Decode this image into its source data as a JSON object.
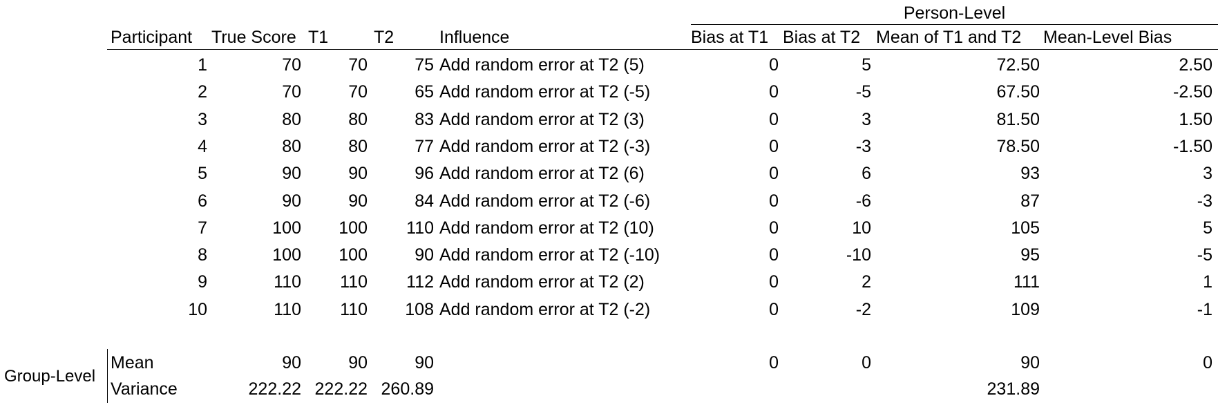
{
  "header": {
    "group_title": "Person-Level",
    "participant": "Participant",
    "true_score": "True Score",
    "t1": "T1",
    "t2": "T2",
    "influence": "Influence",
    "bias_t1": "Bias at T1",
    "bias_t2": "Bias at T2",
    "mean_t1_t2": "Mean of T1 and T2",
    "mean_level_bias": "Mean-Level Bias"
  },
  "rows": [
    {
      "participant": "1",
      "true_score": "70",
      "t1": "70",
      "t2": "75",
      "influence": "Add random error at T2 (5)",
      "bias_t1": "0",
      "bias_t2": "5",
      "mean": "72.50",
      "mean_bias": "2.50"
    },
    {
      "participant": "2",
      "true_score": "70",
      "t1": "70",
      "t2": "65",
      "influence": "Add random error at T2 (-5)",
      "bias_t1": "0",
      "bias_t2": "-5",
      "mean": "67.50",
      "mean_bias": "-2.50"
    },
    {
      "participant": "3",
      "true_score": "80",
      "t1": "80",
      "t2": "83",
      "influence": "Add random error at T2 (3)",
      "bias_t1": "0",
      "bias_t2": "3",
      "mean": "81.50",
      "mean_bias": "1.50"
    },
    {
      "participant": "4",
      "true_score": "80",
      "t1": "80",
      "t2": "77",
      "influence": "Add random error at T2 (-3)",
      "bias_t1": "0",
      "bias_t2": "-3",
      "mean": "78.50",
      "mean_bias": "-1.50"
    },
    {
      "participant": "5",
      "true_score": "90",
      "t1": "90",
      "t2": "96",
      "influence": "Add random error at T2 (6)",
      "bias_t1": "0",
      "bias_t2": "6",
      "mean": "93",
      "mean_bias": "3"
    },
    {
      "participant": "6",
      "true_score": "90",
      "t1": "90",
      "t2": "84",
      "influence": "Add random error at T2 (-6)",
      "bias_t1": "0",
      "bias_t2": "-6",
      "mean": "87",
      "mean_bias": "-3"
    },
    {
      "participant": "7",
      "true_score": "100",
      "t1": "100",
      "t2": "110",
      "influence": "Add random error at T2 (10)",
      "bias_t1": "0",
      "bias_t2": "10",
      "mean": "105",
      "mean_bias": "5"
    },
    {
      "participant": "8",
      "true_score": "100",
      "t1": "100",
      "t2": "90",
      "influence": "Add random error at T2 (-10)",
      "bias_t1": "0",
      "bias_t2": "-10",
      "mean": "95",
      "mean_bias": "-5"
    },
    {
      "participant": "9",
      "true_score": "110",
      "t1": "110",
      "t2": "112",
      "influence": "Add random error at T2 (2)",
      "bias_t1": "0",
      "bias_t2": "2",
      "mean": "111",
      "mean_bias": "1"
    },
    {
      "participant": "10",
      "true_score": "110",
      "t1": "110",
      "t2": "108",
      "influence": "Add random error at T2 (-2)",
      "bias_t1": "0",
      "bias_t2": "-2",
      "mean": "109",
      "mean_bias": "-1"
    }
  ],
  "group": {
    "label": "Group-Level",
    "mean": {
      "label": "Mean",
      "true_score": "90",
      "t1": "90",
      "t2": "90",
      "bias_t1": "0",
      "bias_t2": "0",
      "mean": "90",
      "mean_bias": "0"
    },
    "variance": {
      "label": "Variance",
      "true_score": "222.22",
      "t1": "222.22",
      "t2": "260.89",
      "mean": "231.89"
    }
  }
}
